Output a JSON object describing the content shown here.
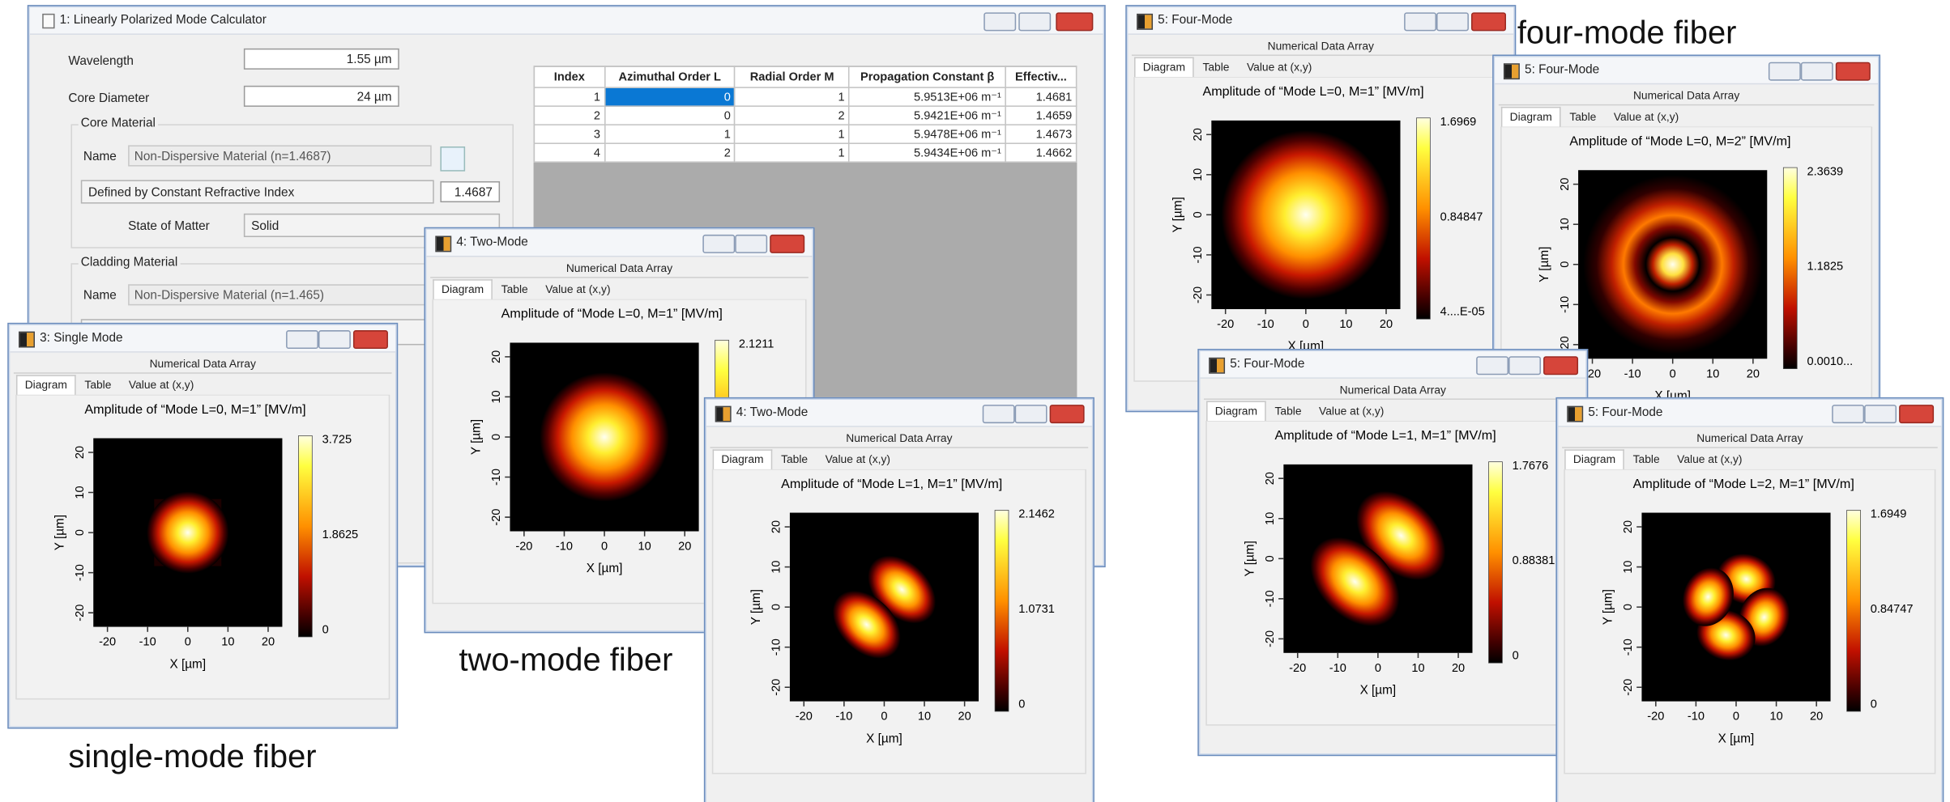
{
  "annotations": [
    "single-mode fiber",
    "two-mode fiber",
    "four-mode fiber"
  ],
  "calculator": {
    "title": "1: Linearly Polarized Mode Calculator",
    "wavelength_label": "Wavelength",
    "wavelength": "1.55 µm",
    "core_diameter_label": "Core Diameter",
    "core_diameter": "24 µm",
    "core_material_label": "Core Material",
    "name_label": "Name",
    "core_name": "Non-Dispersive Material (n=1.4687)",
    "core_definition": "Defined by Constant Refractive Index",
    "core_index": "1.4687",
    "state_label": "State of Matter",
    "state": "Solid",
    "cladding_material_label": "Cladding Material",
    "cladding_name": "Non-Dispersive Material (n=1.465)",
    "table": {
      "columns": [
        "Index",
        "Azimuthal Order L",
        "Radial Order M",
        "Propagation Constant β",
        "Effectiv..."
      ],
      "rows": [
        [
          "1",
          "0",
          "1",
          "5.9513E+06 m⁻¹",
          "1.4681"
        ],
        [
          "2",
          "0",
          "2",
          "5.9421E+06 m⁻¹",
          "1.4659"
        ],
        [
          "3",
          "1",
          "1",
          "5.9478E+06 m⁻¹",
          "1.4673"
        ],
        [
          "4",
          "2",
          "1",
          "5.9434E+06 m⁻¹",
          "1.4662"
        ]
      ]
    }
  },
  "plot_chrome": {
    "header": "Numerical Data Array",
    "tabs": [
      "Diagram",
      "Table",
      "Value at (x,y)"
    ],
    "x_label": "X [µm]",
    "y_label": "Y [µm]",
    "ticks": [
      "-20",
      "-10",
      "0",
      "10",
      "20"
    ]
  },
  "plots": [
    {
      "window_title": "3: Single Mode",
      "title": "Amplitude of “Mode L=0, M=1”  [MV/m]",
      "colorbar_ticks": [
        "3.725",
        "1.8625",
        "0"
      ]
    },
    {
      "window_title": "4: Two-Mode",
      "title": "Amplitude of “Mode L=0, M=1”  [MV/m]",
      "colorbar_ticks": [
        "2.1211"
      ]
    },
    {
      "window_title": "4: Two-Mode",
      "title": "Amplitude of “Mode L=1, M=1”  [MV/m]",
      "colorbar_ticks": [
        "2.1462",
        "1.0731",
        "0"
      ]
    },
    {
      "window_title": "5: Four-Mode",
      "title": "Amplitude of “Mode L=0, M=1”  [MV/m]",
      "colorbar_ticks": [
        "1.6969",
        "0.84847",
        "4....E-05"
      ]
    },
    {
      "window_title": "5: Four-Mode",
      "title": "Amplitude of “Mode L=0, M=2”  [MV/m]",
      "colorbar_ticks": [
        "2.3639",
        "1.1825",
        "0.0010..."
      ]
    },
    {
      "window_title": "5: Four-Mode",
      "title": "Amplitude of “Mode L=1, M=1”  [MV/m]",
      "colorbar_ticks": [
        "1.7676",
        "0.88381",
        "0"
      ]
    },
    {
      "window_title": "5: Four-Mode",
      "title": "Amplitude of “Mode L=2, M=1”  [MV/m]",
      "colorbar_ticks": [
        "1.6949",
        "0.84747",
        "0"
      ]
    }
  ]
}
